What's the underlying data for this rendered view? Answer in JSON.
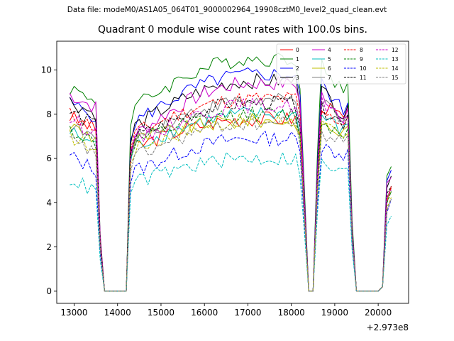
{
  "suptitle": "Data file: modeM0/AS1A05_064T01_9000002964_19908cztM0_level2_quad_clean.evt",
  "chart_data": {
    "type": "line",
    "title": "Quadrant 0 module wise count rates with 100.0s bins.",
    "xlabel": "",
    "ylabel": "",
    "x_offset_label": "+2.973e8",
    "xlim": [
      12600,
      20700
    ],
    "ylim": [
      -0.55,
      11.3
    ],
    "x_ticks": [
      13000,
      14000,
      15000,
      16000,
      17000,
      18000,
      19000,
      20000
    ],
    "x_tick_labels": [
      "13000",
      "14000",
      "15000",
      "16000",
      "17000",
      "18000",
      "19000",
      "20000"
    ],
    "y_ticks": [
      0,
      2,
      4,
      6,
      8,
      10
    ],
    "y_tick_labels": [
      "0",
      "2",
      "4",
      "6",
      "8",
      "10"
    ],
    "grid": false,
    "legend_position": "top-right",
    "segments": [
      {
        "start": 12900,
        "end": 13500
      },
      {
        "start": 14350,
        "end": 18100
      },
      {
        "start": 18650,
        "end": 19200
      },
      {
        "start": 20150,
        "end": 20300
      }
    ],
    "gaps": [
      {
        "start": 13700,
        "end": 14250
      },
      {
        "start": 18400,
        "end": 18500
      },
      {
        "start": 19500,
        "end": 20050
      }
    ],
    "series": [
      {
        "name": "0",
        "color": "#ff0000",
        "dash": "solid",
        "levels": [
          7.9,
          6.5,
          7.8,
          8.5,
          7.8,
          3.9
        ]
      },
      {
        "name": "1",
        "color": "#008000",
        "dash": "solid",
        "levels": [
          9.2,
          8.3,
          10.5,
          10.3,
          9.0,
          5.1
        ]
      },
      {
        "name": "2",
        "color": "#0000ff",
        "dash": "solid",
        "levels": [
          8.5,
          7.6,
          9.8,
          9.5,
          8.1,
          4.9
        ]
      },
      {
        "name": "3",
        "color": "#000000",
        "dash": "solid",
        "levels": [
          8.6,
          7.4,
          9.5,
          9.2,
          8.0,
          4.6
        ]
      },
      {
        "name": "4",
        "color": "#cc00cc",
        "dash": "solid",
        "levels": [
          8.9,
          7.0,
          9.4,
          9.0,
          7.9,
          4.5
        ]
      },
      {
        "name": "5",
        "color": "#00bfbf",
        "dash": "solid",
        "levels": [
          7.2,
          6.5,
          8.0,
          8.0,
          7.2,
          3.8
        ]
      },
      {
        "name": "6",
        "color": "#bfbf00",
        "dash": "solid",
        "levels": [
          7.5,
          6.8,
          7.7,
          7.6,
          7.1,
          3.8
        ]
      },
      {
        "name": "7",
        "color": "#808080",
        "dash": "solid",
        "levels": [
          7.5,
          6.9,
          8.6,
          8.6,
          7.6,
          3.9
        ]
      },
      {
        "name": "8",
        "color": "#ff0000",
        "dash": "dashed",
        "levels": [
          8.0,
          7.1,
          8.7,
          8.4,
          7.5,
          3.9
        ]
      },
      {
        "name": "9",
        "color": "#008000",
        "dash": "dashed",
        "levels": [
          7.3,
          6.7,
          8.0,
          7.8,
          7.0,
          3.7
        ]
      },
      {
        "name": "10",
        "color": "#0000ff",
        "dash": "dashed",
        "levels": [
          6.1,
          5.4,
          6.9,
          6.6,
          6.1,
          3.3
        ]
      },
      {
        "name": "11",
        "color": "#000000",
        "dash": "dashed",
        "levels": [
          8.1,
          6.9,
          8.5,
          8.3,
          7.6,
          4.2
        ]
      },
      {
        "name": "12",
        "color": "#cc00cc",
        "dash": "dashed",
        "levels": [
          7.8,
          6.7,
          8.4,
          8.6,
          7.5,
          4.0
        ]
      },
      {
        "name": "13",
        "color": "#00bfbf",
        "dash": "dashed",
        "levels": [
          5.1,
          4.9,
          6.0,
          5.8,
          5.3,
          2.8
        ]
      },
      {
        "name": "14",
        "color": "#bfbf00",
        "dash": "dashed",
        "levels": [
          7.0,
          6.4,
          7.7,
          7.6,
          6.8,
          3.6
        ]
      },
      {
        "name": "15",
        "color": "#808080",
        "dash": "dashed",
        "levels": [
          6.8,
          6.0,
          7.6,
          7.2,
          6.7,
          3.5
        ]
      }
    ]
  }
}
